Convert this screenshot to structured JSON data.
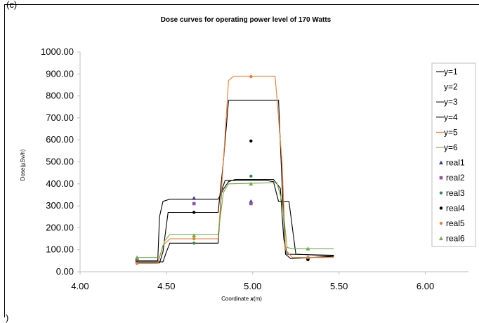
{
  "panel_tag": "(c)",
  "chart_data": {
    "type": "line",
    "title": "Dose curves for operating power level of 170 Watts",
    "xlabel": "Coordinate x(m)",
    "xlabel_prefix": "Coordinate ",
    "xlabel_var": "x",
    "xlabel_suffix": "(m)",
    "ylabel": "Dose(µSv/h)",
    "xlim": [
      4.0,
      6.25
    ],
    "ylim": [
      0,
      1000
    ],
    "xticks": [
      "4.00",
      "4.50",
      "5.00",
      "5.50",
      "6.00"
    ],
    "xtick_values": [
      4.0,
      4.5,
      5.0,
      5.5,
      6.0
    ],
    "yticks": [
      "0.00",
      "100.00",
      "200.00",
      "300.00",
      "400.00",
      "500.00",
      "600.00",
      "700.00",
      "800.00",
      "900.00",
      "1000.00"
    ],
    "ytick_values": [
      0,
      100,
      200,
      300,
      400,
      500,
      600,
      700,
      800,
      900,
      1000
    ],
    "grid": false,
    "legend_position": "right",
    "series": [
      {
        "name": "y=1",
        "color": "#000000",
        "values": [
          [
            4.33,
            50
          ],
          [
            4.45,
            50
          ],
          [
            4.46,
            250
          ],
          [
            4.48,
            320
          ],
          [
            4.52,
            330
          ],
          [
            4.8,
            330
          ],
          [
            4.83,
            375
          ],
          [
            4.86,
            410
          ],
          [
            4.9,
            420
          ],
          [
            5.12,
            420
          ],
          [
            5.16,
            380
          ],
          [
            5.18,
            150
          ],
          [
            5.2,
            80
          ],
          [
            5.47,
            75
          ]
        ]
      },
      {
        "name": "y=2",
        "color": "#7f7f7f",
        "values": []
      },
      {
        "name": "y=3",
        "color": "#000000",
        "values": [
          [
            4.33,
            40
          ],
          [
            4.46,
            40
          ],
          [
            4.48,
            90
          ],
          [
            4.51,
            270
          ],
          [
            4.8,
            270
          ],
          [
            4.83,
            500
          ],
          [
            4.86,
            780
          ],
          [
            5.15,
            780
          ],
          [
            5.17,
            400
          ],
          [
            5.19,
            80
          ],
          [
            5.22,
            60
          ],
          [
            5.47,
            70
          ]
        ]
      },
      {
        "name": "y=4",
        "color": "#000000",
        "values": [
          [
            4.33,
            45
          ],
          [
            4.48,
            45
          ],
          [
            4.5,
            90
          ],
          [
            4.52,
            130
          ],
          [
            4.8,
            130
          ],
          [
            4.82,
            370
          ],
          [
            4.84,
            415
          ],
          [
            5.08,
            415
          ],
          [
            5.12,
            410
          ],
          [
            5.15,
            320
          ],
          [
            5.21,
            320
          ],
          [
            5.23,
            200
          ],
          [
            5.25,
            80
          ],
          [
            5.47,
            72
          ]
        ]
      },
      {
        "name": "y=5",
        "color": "#ed7d31",
        "values": [
          [
            4.33,
            38
          ],
          [
            4.45,
            38
          ],
          [
            4.48,
            120
          ],
          [
            4.52,
            150
          ],
          [
            4.8,
            150
          ],
          [
            4.83,
            500
          ],
          [
            4.86,
            870
          ],
          [
            4.89,
            890
          ],
          [
            5.13,
            890
          ],
          [
            5.17,
            500
          ],
          [
            5.19,
            100
          ],
          [
            5.23,
            65
          ],
          [
            5.47,
            65
          ]
        ]
      },
      {
        "name": "y=6",
        "color": "#70ad47",
        "values": [
          [
            4.33,
            65
          ],
          [
            4.46,
            65
          ],
          [
            4.49,
            140
          ],
          [
            4.52,
            170
          ],
          [
            4.8,
            170
          ],
          [
            4.83,
            360
          ],
          [
            4.86,
            400
          ],
          [
            5.14,
            405
          ],
          [
            5.17,
            320
          ],
          [
            5.2,
            110
          ],
          [
            5.23,
            105
          ],
          [
            5.47,
            105
          ]
        ]
      },
      {
        "name": "real1",
        "color": "#2f3f8f",
        "marker": "triangle",
        "values": [
          [
            4.33,
            60
          ],
          [
            4.66,
            335
          ],
          [
            4.99,
            320
          ],
          [
            5.32,
            65
          ]
        ]
      },
      {
        "name": "real2",
        "color": "#9b4fa5",
        "marker": "square",
        "values": [
          [
            4.33,
            50
          ],
          [
            4.66,
            310
          ],
          [
            4.99,
            310
          ],
          [
            5.32,
            60
          ]
        ]
      },
      {
        "name": "real3",
        "color": "#2e8b57",
        "marker": "dot",
        "values": [
          [
            4.33,
            45
          ],
          [
            4.66,
            130
          ],
          [
            4.99,
            435
          ],
          [
            5.32,
            60
          ]
        ]
      },
      {
        "name": "real4",
        "color": "#000000",
        "marker": "dot",
        "values": [
          [
            4.33,
            40
          ],
          [
            4.66,
            270
          ],
          [
            4.99,
            595
          ],
          [
            5.32,
            55
          ]
        ]
      },
      {
        "name": "real5",
        "color": "#ed7d31",
        "marker": "dot",
        "values": [
          [
            4.33,
            38
          ],
          [
            4.66,
            150
          ],
          [
            4.99,
            888
          ],
          [
            5.32,
            65
          ]
        ]
      },
      {
        "name": "real6",
        "color": "#70ad47",
        "marker": "triangle",
        "values": [
          [
            4.33,
            65
          ],
          [
            4.66,
            165
          ],
          [
            4.99,
            400
          ],
          [
            5.32,
            105
          ]
        ]
      }
    ]
  }
}
